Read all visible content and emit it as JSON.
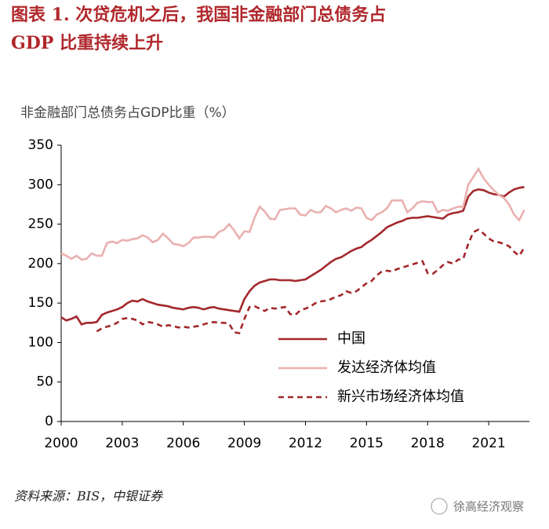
{
  "chart_data": {
    "type": "line",
    "title": "图表 1. 次贷危机之后，我国非金融部门总债务占",
    "subtitle": "GDP 比重持续上升",
    "ylabel": "非金融部门总债务占GDP比重（%）",
    "source": "资料来源：BIS，中银证券",
    "watermark": "徐高经济观察",
    "legend_position": "lower right",
    "xlim": [
      2000,
      2023
    ],
    "xticks": [
      2000,
      2003,
      2006,
      2009,
      2012,
      2015,
      2018,
      2021
    ],
    "ylim": [
      0,
      350
    ],
    "yticks": [
      0,
      50,
      100,
      150,
      200,
      250,
      300,
      350
    ],
    "x": [
      2000,
      2000.25,
      2000.5,
      2000.75,
      2001,
      2001.25,
      2001.5,
      2001.75,
      2002,
      2002.25,
      2002.5,
      2002.75,
      2003,
      2003.25,
      2003.5,
      2003.75,
      2004,
      2004.25,
      2004.5,
      2004.75,
      2005,
      2005.25,
      2005.5,
      2005.75,
      2006,
      2006.25,
      2006.5,
      2006.75,
      2007,
      2007.25,
      2007.5,
      2007.75,
      2008,
      2008.25,
      2008.5,
      2008.75,
      2009,
      2009.25,
      2009.5,
      2009.75,
      2010,
      2010.25,
      2010.5,
      2010.75,
      2011,
      2011.25,
      2011.5,
      2011.75,
      2012,
      2012.25,
      2012.5,
      2012.75,
      2013,
      2013.25,
      2013.5,
      2013.75,
      2014,
      2014.25,
      2014.5,
      2014.75,
      2015,
      2015.25,
      2015.5,
      2015.75,
      2016,
      2016.25,
      2016.5,
      2016.75,
      2017,
      2017.25,
      2017.5,
      2017.75,
      2018,
      2018.25,
      2018.5,
      2018.75,
      2019,
      2019.25,
      2019.5,
      2019.75,
      2020,
      2020.25,
      2020.5,
      2020.75,
      2021,
      2021.25,
      2021.5,
      2021.75,
      2022,
      2022.25,
      2022.5,
      2022.75
    ],
    "series": [
      {
        "name": "中国",
        "color": "#a3282c",
        "dash": false,
        "values": [
          132,
          128,
          130,
          133,
          123,
          125,
          125,
          126,
          135,
          138,
          140,
          142,
          145,
          150,
          153,
          152,
          155,
          152,
          150,
          148,
          147,
          146,
          144,
          143,
          142,
          144,
          145,
          144,
          142,
          144,
          145,
          143,
          142,
          141,
          140,
          139,
          155,
          165,
          172,
          176,
          178,
          180,
          180,
          179,
          179,
          179,
          178,
          179,
          180,
          184,
          188,
          192,
          197,
          202,
          206,
          208,
          212,
          216,
          219,
          221,
          226,
          230,
          235,
          240,
          246,
          249,
          252,
          254,
          257,
          258,
          258,
          259,
          260,
          259,
          258,
          257,
          262,
          264,
          265,
          267,
          285,
          292,
          294,
          293,
          290,
          288,
          287,
          285,
          290,
          294,
          296,
          297
        ]
      },
      {
        "name": "发达经济体均值",
        "color": "#eab0b0",
        "dash": false,
        "values": [
          213,
          210,
          206,
          210,
          205,
          206,
          213,
          210,
          210,
          226,
          228,
          226,
          230,
          229,
          231,
          232,
          236,
          233,
          227,
          230,
          238,
          232,
          225,
          224,
          222,
          226,
          233,
          233,
          234,
          234,
          233,
          240,
          243,
          250,
          242,
          232,
          241,
          240,
          258,
          272,
          266,
          257,
          256,
          268,
          269,
          270,
          270,
          262,
          261,
          268,
          265,
          265,
          273,
          270,
          265,
          268,
          270,
          267,
          271,
          270,
          258,
          255,
          262,
          265,
          270,
          280,
          280,
          280,
          265,
          270,
          277,
          279,
          278,
          278,
          265,
          268,
          267,
          270,
          272,
          272,
          300,
          310,
          320,
          308,
          300,
          293,
          287,
          283,
          275,
          262,
          255,
          268
        ]
      },
      {
        "name": "新兴市场经济体均值",
        "color": "#a3282c",
        "dash": true,
        "values": [
          null,
          null,
          null,
          null,
          null,
          null,
          null,
          114,
          118,
          120,
          122,
          125,
          130,
          131,
          130,
          128,
          123,
          126,
          125,
          123,
          120,
          122,
          121,
          119,
          120,
          119,
          120,
          121,
          123,
          125,
          126,
          125,
          125,
          124,
          113,
          112,
          130,
          145,
          146,
          143,
          140,
          144,
          143,
          144,
          145,
          136,
          135,
          141,
          143,
          146,
          150,
          152,
          153,
          155,
          158,
          160,
          165,
          163,
          165,
          170,
          175,
          178,
          185,
          190,
          191,
          190,
          193,
          195,
          197,
          199,
          201,
          203,
          188,
          187,
          192,
          198,
          202,
          200,
          205,
          206,
          225,
          240,
          243,
          238,
          232,
          228,
          227,
          225,
          222,
          215,
          210,
          220
        ]
      }
    ]
  }
}
